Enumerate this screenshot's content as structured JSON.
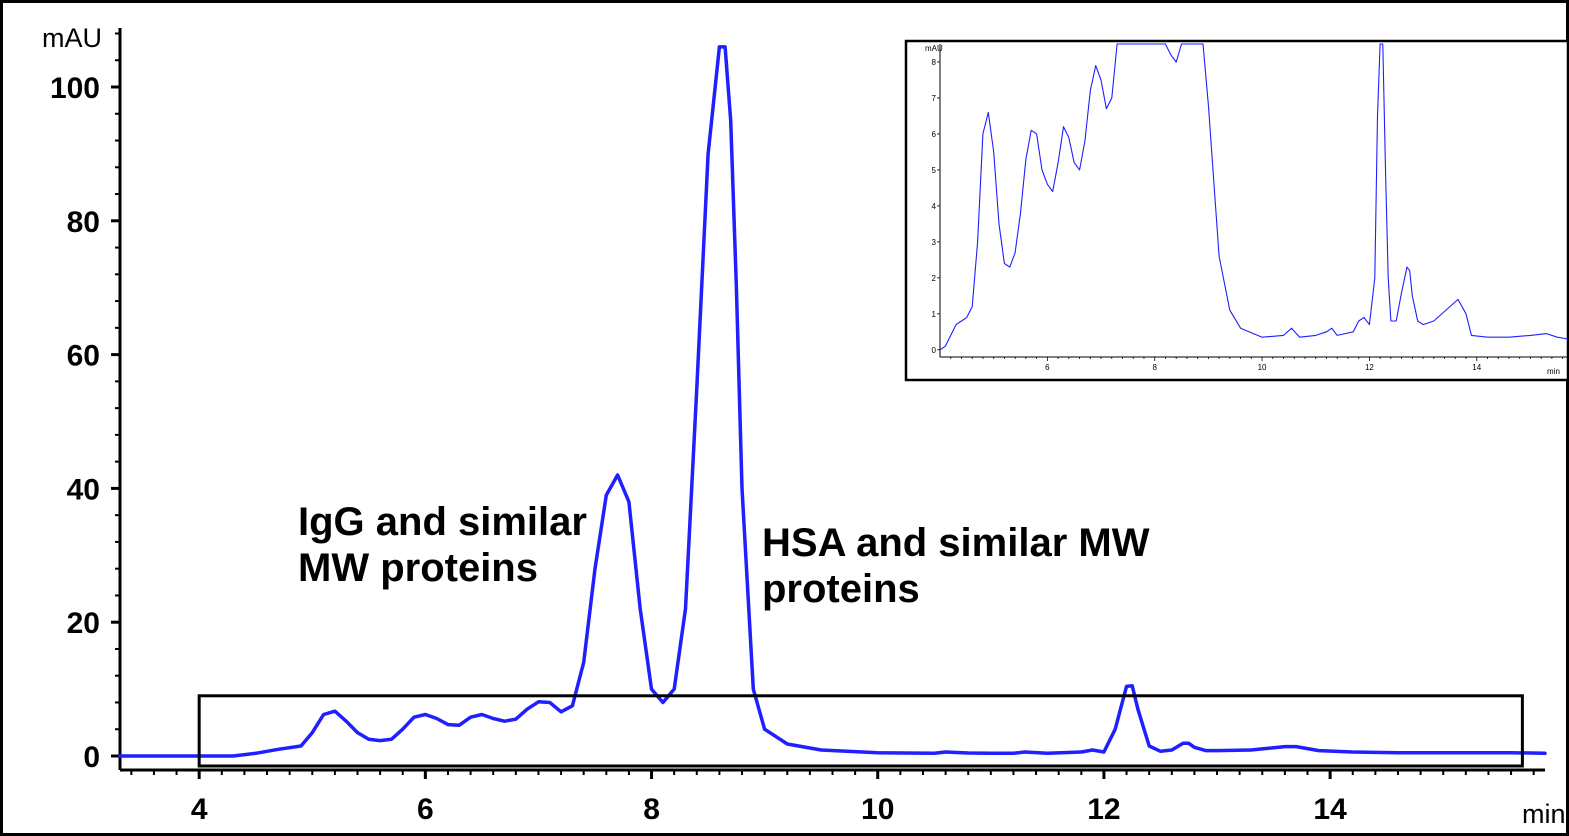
{
  "chart_data": [
    {
      "type": "line",
      "ylabel": "mAU",
      "xlabel": "min",
      "xlim": [
        3.3,
        15.9
      ],
      "ylim": [
        0,
        108
      ],
      "x_ticks": [
        4,
        6,
        8,
        10,
        12,
        14
      ],
      "y_ticks": [
        0,
        20,
        40,
        60,
        80,
        100
      ],
      "x_tick_labels": [
        "4",
        "6",
        "8",
        "10",
        "12",
        "14"
      ],
      "y_tick_labels": [
        "0",
        "20",
        "40",
        "60",
        "80",
        "100"
      ],
      "grid": false,
      "colors": {
        "trace": "#1f1fff",
        "axes": "#000000"
      },
      "series": [
        {
          "x": [
            3.3,
            4.0,
            4.3,
            4.5,
            4.7,
            4.9,
            5.0,
            5.1,
            5.2,
            5.3,
            5.4,
            5.5,
            5.6,
            5.7,
            5.8,
            5.9,
            6.0,
            6.1,
            6.2,
            6.3,
            6.4,
            6.5,
            6.6,
            6.7,
            6.8,
            6.9,
            7.0,
            7.1,
            7.2,
            7.3,
            7.4,
            7.5,
            7.6,
            7.7,
            7.8,
            7.9,
            8.0,
            8.1,
            8.2,
            8.3,
            8.4,
            8.5,
            8.6,
            8.65,
            8.7,
            8.75,
            8.8,
            8.9,
            9.0,
            9.2,
            9.5,
            10.0,
            10.5,
            10.6,
            10.8,
            11.0,
            11.2,
            11.3,
            11.5,
            11.8,
            11.9,
            12.0,
            12.1,
            12.2,
            12.25,
            12.3,
            12.4,
            12.5,
            12.6,
            12.7,
            12.75,
            12.8,
            12.9,
            13.0,
            13.3,
            13.6,
            13.7,
            13.9,
            14.2,
            14.6,
            15.0,
            15.6,
            15.9
          ],
          "y": [
            0,
            0,
            0,
            0.4,
            1.0,
            1.5,
            3.5,
            6.2,
            6.7,
            5.2,
            3.5,
            2.5,
            2.3,
            2.5,
            4.0,
            5.8,
            6.2,
            5.6,
            4.7,
            4.6,
            5.8,
            6.2,
            5.6,
            5.2,
            5.5,
            7.0,
            8.1,
            8.0,
            6.6,
            7.5,
            14,
            28,
            39,
            42,
            38,
            22,
            10,
            8,
            10,
            22,
            55,
            90,
            106,
            106,
            95,
            70,
            40,
            10,
            4,
            1.8,
            0.9,
            0.5,
            0.4,
            0.6,
            0.45,
            0.4,
            0.4,
            0.6,
            0.4,
            0.6,
            0.9,
            0.6,
            4,
            10.4,
            10.5,
            7,
            1.5,
            0.7,
            0.9,
            1.9,
            1.9,
            1.3,
            0.8,
            0.8,
            0.9,
            1.4,
            1.4,
            0.8,
            0.6,
            0.5,
            0.5,
            0.5,
            0.4
          ]
        }
      ],
      "annotations": [
        {
          "text": "IgG and similar\nMW proteins"
        },
        {
          "text": "HSA and similar MW\nproteins"
        }
      ],
      "zoom_box": {
        "x": [
          4.0,
          15.7
        ],
        "y": [
          0,
          9
        ]
      }
    },
    {
      "type": "line",
      "ylabel": "mAU",
      "xlabel": "min",
      "xlim": [
        4.0,
        15.7
      ],
      "ylim": [
        -0.2,
        8.5
      ],
      "x_ticks": [
        6,
        8,
        10,
        12,
        14
      ],
      "y_ticks": [
        0,
        1,
        2,
        3,
        4,
        5,
        6,
        7,
        8
      ],
      "x_tick_labels": [
        "6",
        "8",
        "10",
        "12",
        "14"
      ],
      "y_tick_labels": [
        "0",
        "1",
        "2",
        "3",
        "4",
        "5",
        "6",
        "7",
        "8"
      ],
      "grid": false,
      "series": [
        {
          "x": [
            4.0,
            4.1,
            4.2,
            4.3,
            4.4,
            4.5,
            4.6,
            4.7,
            4.8,
            4.9,
            5.0,
            5.1,
            5.2,
            5.3,
            5.4,
            5.5,
            5.6,
            5.7,
            5.8,
            5.9,
            6.0,
            6.1,
            6.2,
            6.3,
            6.4,
            6.5,
            6.6,
            6.7,
            6.8,
            6.9,
            7.0,
            7.1,
            7.2,
            7.3,
            7.4,
            7.5,
            7.6,
            7.7,
            7.8,
            7.9,
            8.0,
            8.1,
            8.2,
            8.3,
            8.4,
            8.5,
            8.6,
            8.7,
            8.8,
            8.9,
            9.0,
            9.2,
            9.4,
            9.6,
            10.0,
            10.4,
            10.55,
            10.7,
            11.0,
            11.2,
            11.3,
            11.4,
            11.7,
            11.8,
            11.9,
            12.0,
            12.1,
            12.15,
            12.2,
            12.25,
            12.3,
            12.35,
            12.4,
            12.5,
            12.6,
            12.7,
            12.75,
            12.8,
            12.9,
            13.0,
            13.2,
            13.5,
            13.65,
            13.8,
            13.9,
            14.2,
            14.6,
            15.0,
            15.3,
            15.5,
            15.7
          ],
          "y": [
            0,
            0.1,
            0.4,
            0.7,
            0.8,
            0.9,
            1.2,
            3.0,
            6.0,
            6.6,
            5.5,
            3.5,
            2.4,
            2.3,
            2.7,
            3.8,
            5.3,
            6.1,
            6.0,
            5.0,
            4.6,
            4.4,
            5.2,
            6.2,
            5.9,
            5.2,
            5.0,
            5.8,
            7.2,
            7.9,
            7.5,
            6.7,
            7.0,
            8.5,
            8.5,
            8.5,
            8.5,
            8.5,
            8.5,
            8.5,
            8.5,
            8.5,
            8.5,
            8.2,
            8.0,
            8.5,
            8.5,
            8.5,
            8.5,
            8.5,
            6.8,
            2.6,
            1.1,
            0.6,
            0.35,
            0.4,
            0.6,
            0.35,
            0.4,
            0.5,
            0.6,
            0.4,
            0.5,
            0.8,
            0.9,
            0.7,
            2.0,
            6.5,
            8.5,
            8.5,
            5.0,
            2.0,
            0.8,
            0.8,
            1.6,
            2.3,
            2.2,
            1.5,
            0.8,
            0.7,
            0.8,
            1.2,
            1.4,
            1.0,
            0.4,
            0.35,
            0.35,
            0.4,
            0.45,
            0.35,
            0.3
          ]
        }
      ]
    }
  ]
}
